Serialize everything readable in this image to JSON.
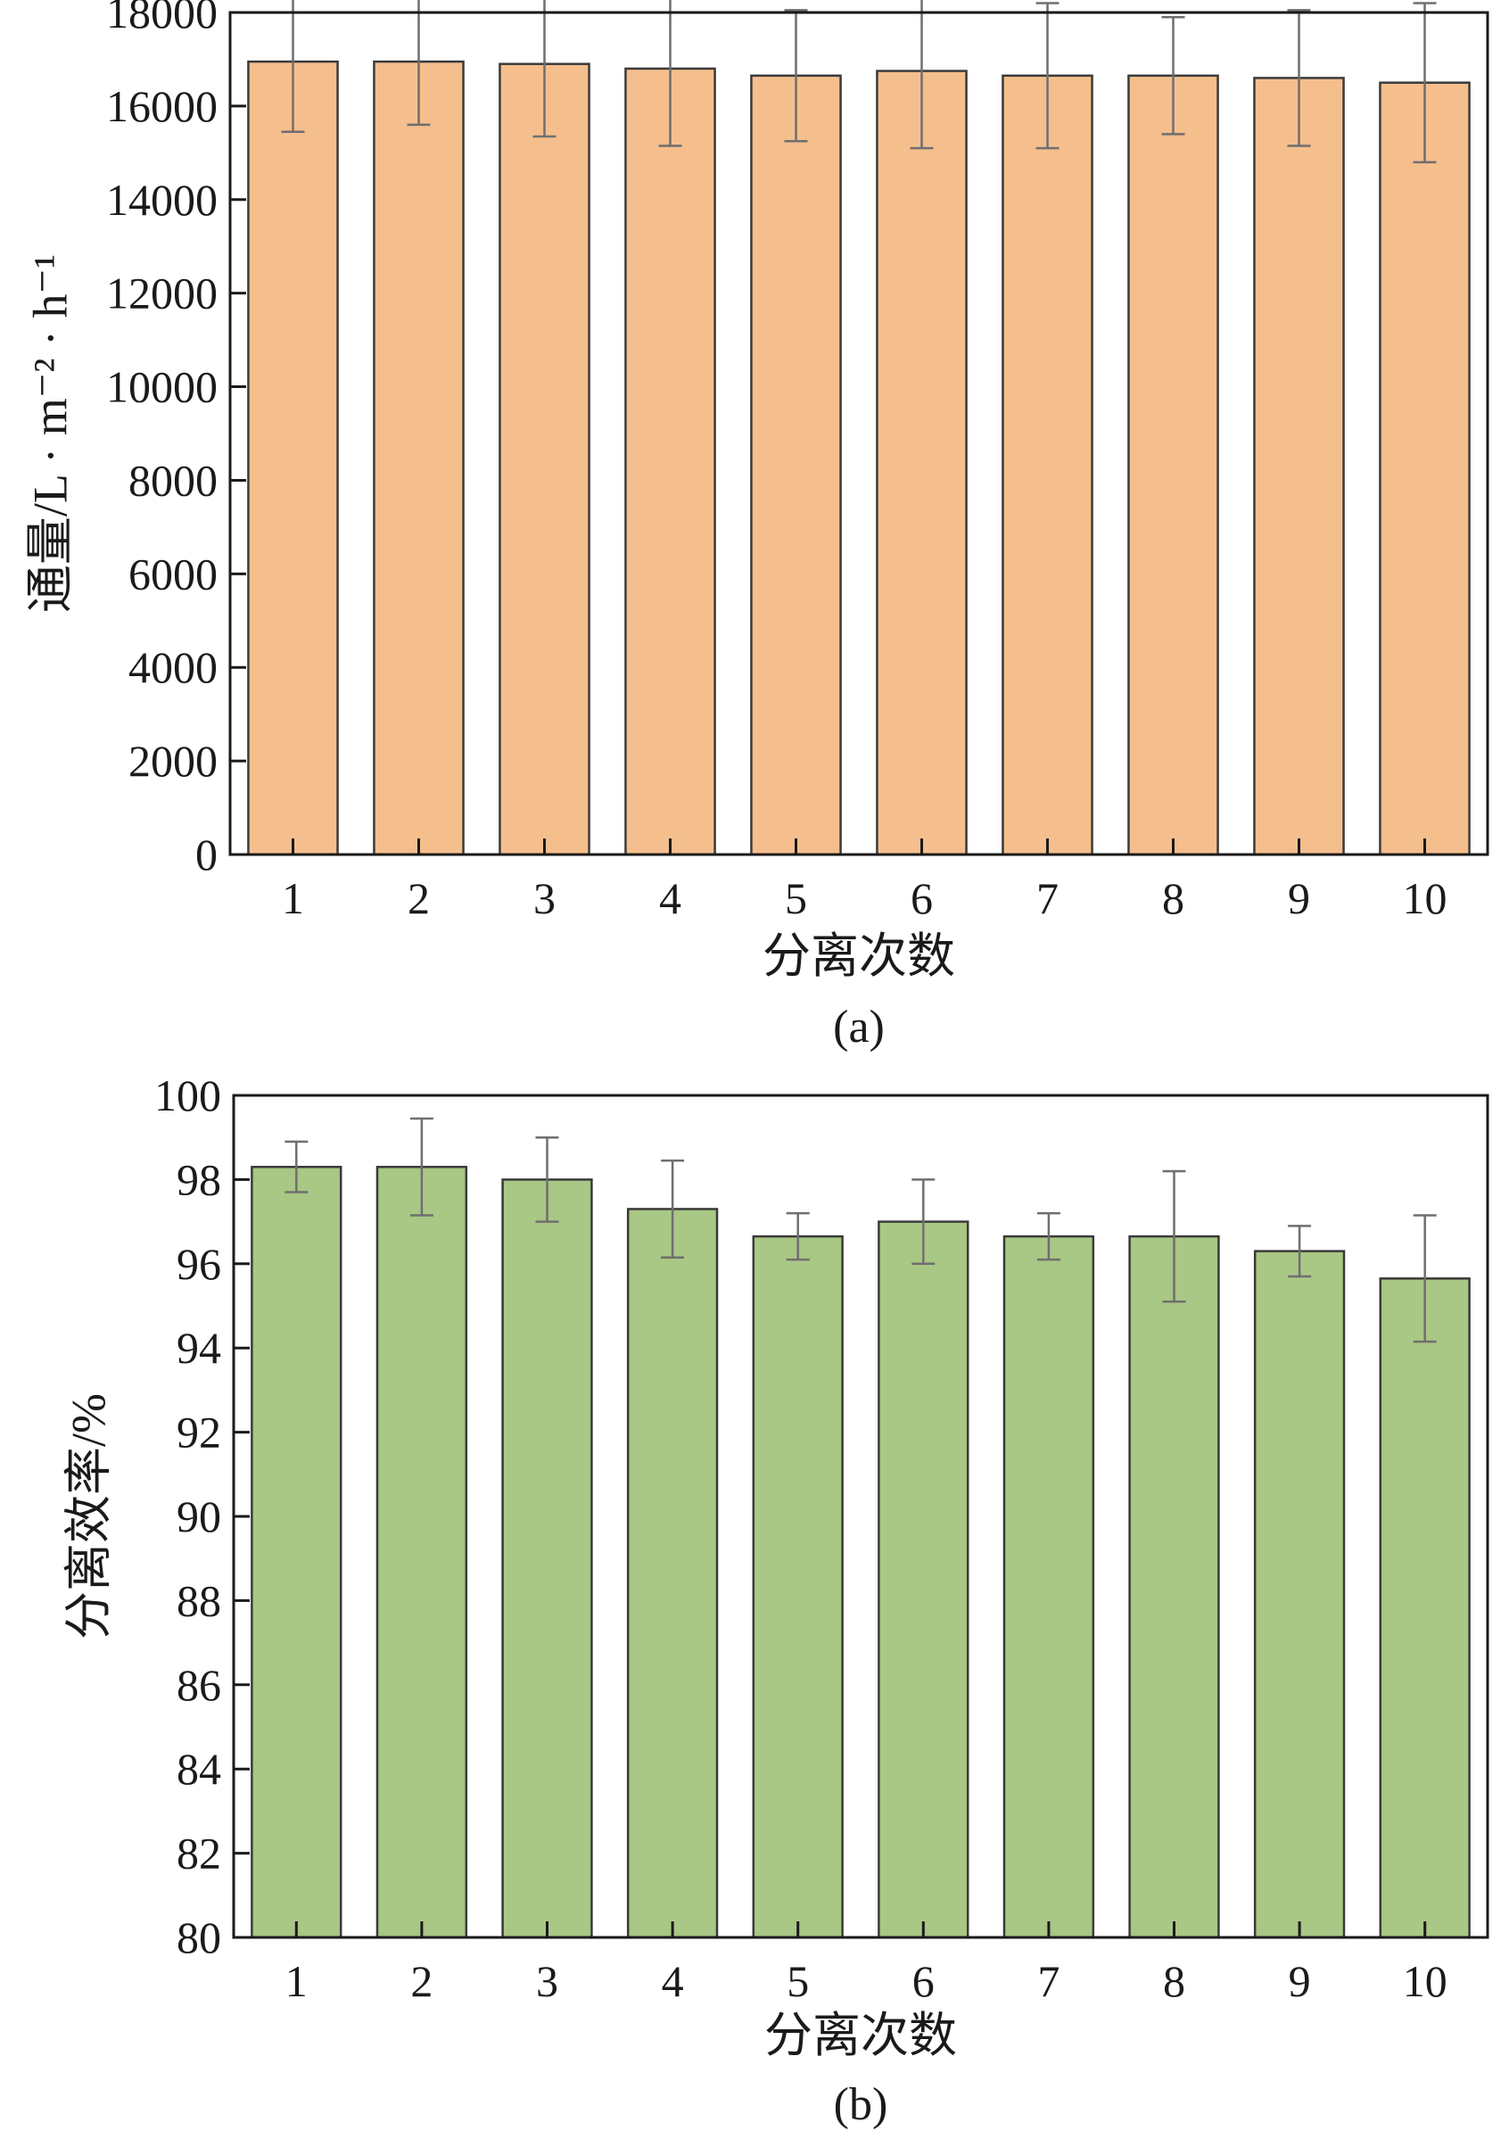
{
  "chart_data": [
    {
      "type": "bar",
      "caption": "(a)",
      "xlabel": "分离次数",
      "ylabel": "通量/L · m⁻² · h⁻¹",
      "categories": [
        "1",
        "2",
        "3",
        "4",
        "5",
        "6",
        "7",
        "8",
        "9",
        "10"
      ],
      "values": [
        16950,
        16950,
        16900,
        16800,
        16650,
        16750,
        16650,
        16650,
        16600,
        16500
      ],
      "errors": [
        1500,
        1350,
        1550,
        1650,
        1400,
        1650,
        1550,
        1250,
        1450,
        1700
      ],
      "ylim": [
        0,
        18000
      ],
      "yticks": [
        "0",
        "2000",
        "4000",
        "6000",
        "8000",
        "10000",
        "12000",
        "14000",
        "16000",
        "18000"
      ],
      "bar_color": "#f5be8d",
      "grid": false
    },
    {
      "type": "bar",
      "caption": "(b)",
      "xlabel": "分离次数",
      "ylabel": "分离效率/%",
      "categories": [
        "1",
        "2",
        "3",
        "4",
        "5",
        "6",
        "7",
        "8",
        "9",
        "10"
      ],
      "values": [
        98.3,
        98.3,
        98.0,
        97.3,
        96.65,
        97.0,
        96.65,
        96.65,
        96.3,
        95.65
      ],
      "errors": [
        0.6,
        1.15,
        1.0,
        1.15,
        0.55,
        1.0,
        0.55,
        1.55,
        0.6,
        1.5
      ],
      "ylim": [
        80,
        100
      ],
      "yticks": [
        "80",
        "82",
        "84",
        "86",
        "88",
        "90",
        "92",
        "94",
        "96",
        "98",
        "100"
      ],
      "bar_color": "#a9c785",
      "grid": false
    }
  ]
}
